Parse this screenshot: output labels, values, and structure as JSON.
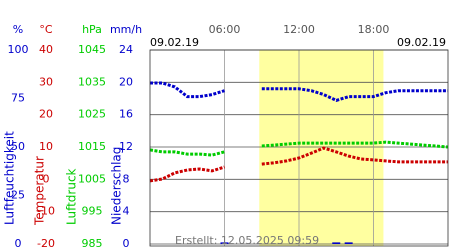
{
  "chart_data": {
    "type": "line",
    "date_start": "09.02.19",
    "date_end": "09.02.19",
    "footer": "Erstellt: 12.05.2025 09:59",
    "xlim": [
      0,
      24
    ],
    "xticks": [
      {
        "value": 6,
        "label": "06:00"
      },
      {
        "value": 12,
        "label": "12:00"
      },
      {
        "value": 18,
        "label": "18:00"
      }
    ],
    "highlight": [
      8.8,
      18.8
    ],
    "grid": true,
    "axes": [
      {
        "unit": "%",
        "label": "Luftfeuchtigkeit",
        "color": "#0000cc",
        "ylim": [
          0,
          100
        ],
        "yticks": [
          0,
          25,
          50,
          75,
          100
        ]
      },
      {
        "unit": "°C",
        "label": "Temperatur",
        "color": "#cc0000",
        "ylim": [
          -20,
          40
        ],
        "yticks": [
          -20,
          -10,
          0,
          10,
          20,
          30,
          40
        ]
      },
      {
        "unit": "hPa",
        "label": "Luftdruck",
        "color": "#00cc00",
        "ylim": [
          985,
          1045
        ],
        "yticks": [
          985,
          995,
          1005,
          1015,
          1025,
          1035,
          1045
        ]
      },
      {
        "unit": "mm/h",
        "label": "Niederschlag",
        "color": "#0000cc",
        "ylim": [
          0,
          24
        ],
        "yticks": [
          0,
          4,
          8,
          12,
          16,
          20,
          24
        ]
      }
    ],
    "x": [
      0,
      1,
      2,
      3,
      4,
      5,
      6,
      7,
      8,
      9,
      10,
      11,
      12,
      13,
      14,
      15,
      16,
      17,
      18,
      19,
      20,
      21,
      22,
      23,
      24
    ],
    "series": [
      {
        "name": "Luftfeuchtigkeit",
        "axis": 0,
        "color": "#0000cc",
        "style": "line",
        "values": [
          83,
          83,
          81,
          76,
          76,
          77,
          79,
          null,
          null,
          80,
          80,
          80,
          80,
          79,
          77,
          74,
          76,
          76,
          76,
          78,
          79,
          79,
          79,
          79,
          79
        ]
      },
      {
        "name": "Temperatur",
        "axis": 1,
        "color": "#cc0000",
        "style": "line",
        "values": [
          -0.5,
          0.1,
          2.0,
          2.9,
          3.2,
          2.6,
          3.8,
          null,
          null,
          4.7,
          5.1,
          5.7,
          6.6,
          8.1,
          9.7,
          8.5,
          7.2,
          6.3,
          6.0,
          5.7,
          5.4,
          5.4,
          5.4,
          5.4,
          5.4
        ]
      },
      {
        "name": "Luftdruck",
        "axis": 2,
        "color": "#00cc00",
        "style": "line",
        "values": [
          1014.1,
          1013.5,
          1013.5,
          1012.8,
          1012.8,
          1012.5,
          1013.5,
          null,
          null,
          1015.3,
          1015.6,
          1015.9,
          1016.2,
          1016.2,
          1016.2,
          1016.2,
          1016.2,
          1016.2,
          1016.2,
          1016.5,
          1016.2,
          1015.9,
          1015.6,
          1015.3,
          1015.0
        ]
      },
      {
        "name": "Niederschlag",
        "axis": 3,
        "color": "#0000cc",
        "style": "bar",
        "values": [
          0,
          0,
          0,
          0,
          0,
          0,
          0.2,
          null,
          null,
          0,
          0,
          0,
          0,
          0,
          0,
          0.2,
          0.2,
          0,
          0,
          0,
          0,
          0,
          0,
          0,
          0
        ]
      }
    ]
  }
}
